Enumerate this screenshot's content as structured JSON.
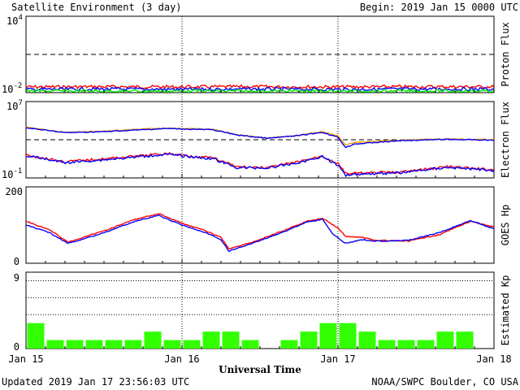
{
  "header": {
    "title": "Satellite Environment (3 day)",
    "begin": "Begin:  2019 Jan 15 0000 UTC"
  },
  "footer": {
    "updated": "Updated 2019 Jan 17 23:56:03 UTC",
    "credit": "NOAA/SWPC Boulder, CO USA",
    "xlabel": "Universal Time"
  },
  "x_ticks": [
    "Jan 15",
    "Jan 16",
    "Jan 17",
    "Jan 18"
  ],
  "colors": {
    "red": "#ff0000",
    "blue": "#0000ff",
    "green": "#00ee00",
    "orange": "#ff9900",
    "kp_bar": "#33ff00"
  },
  "chart_data": [
    {
      "type": "line",
      "scale": "log",
      "ylabel": "Proton Flux",
      "ylim": [
        0.01,
        10000
      ],
      "y_ticks": [
        {
          "base": "10",
          "exp": "4"
        },
        {
          "base": "10",
          "exp": "-2"
        }
      ],
      "threshold": 10,
      "x_range_days": [
        0,
        3
      ],
      "series": [
        {
          "color": "red",
          "points": [
            [
              0,
              0.028
            ],
            [
              0.5,
              0.029
            ],
            [
              1,
              0.028
            ],
            [
              1.5,
              0.029
            ],
            [
              2,
              0.028
            ],
            [
              2.5,
              0.029
            ],
            [
              3,
              0.029
            ]
          ]
        },
        {
          "color": "blue",
          "points": [
            [
              0,
              0.018
            ],
            [
              0.5,
              0.019
            ],
            [
              1,
              0.018
            ],
            [
              1.5,
              0.019
            ],
            [
              2,
              0.018
            ],
            [
              2.5,
              0.019
            ],
            [
              3,
              0.019
            ]
          ]
        },
        {
          "color": "green",
          "points": [
            [
              0,
              0.013
            ],
            [
              0.5,
              0.013
            ],
            [
              1,
              0.013
            ],
            [
              1.5,
              0.013
            ],
            [
              2,
              0.013
            ],
            [
              2.5,
              0.013
            ],
            [
              3,
              0.013
            ]
          ]
        }
      ]
    },
    {
      "type": "line",
      "scale": "log",
      "ylabel": "Electron Flux",
      "ylim": [
        0.1,
        10000000
      ],
      "y_ticks": [
        {
          "base": "10",
          "exp": "7"
        },
        {
          "base": "10",
          "exp": "-1"
        }
      ],
      "threshold": 1000,
      "x_range_days": [
        0,
        3
      ],
      "series": [
        {
          "color": "orange",
          "points": [
            [
              0,
              20000
            ],
            [
              0.25,
              6000
            ],
            [
              0.5,
              8000
            ],
            [
              0.9,
              17000
            ],
            [
              1.2,
              12000
            ],
            [
              1.35,
              3500
            ],
            [
              1.55,
              1500
            ],
            [
              1.75,
              3000
            ],
            [
              1.9,
              7000
            ],
            [
              2.0,
              2500
            ],
            [
              2.05,
              250
            ],
            [
              2.1,
              500
            ],
            [
              2.4,
              900
            ],
            [
              2.7,
              1200
            ],
            [
              3,
              1000
            ]
          ]
        },
        {
          "color": "blue",
          "points": [
            [
              0,
              18000
            ],
            [
              0.25,
              5500
            ],
            [
              0.5,
              7000
            ],
            [
              0.9,
              15000
            ],
            [
              1.2,
              11000
            ],
            [
              1.35,
              3200
            ],
            [
              1.55,
              1400
            ],
            [
              1.75,
              2800
            ],
            [
              1.9,
              6000
            ],
            [
              2.0,
              1800
            ],
            [
              2.05,
              150
            ],
            [
              2.1,
              350
            ],
            [
              2.4,
              800
            ],
            [
              2.7,
              1100
            ],
            [
              3,
              900
            ]
          ]
        },
        {
          "color": "red",
          "points": [
            [
              0,
              25
            ],
            [
              0.25,
              5
            ],
            [
              0.5,
              10
            ],
            [
              0.9,
              35
            ],
            [
              1.2,
              12
            ],
            [
              1.35,
              1.5
            ],
            [
              1.55,
              1.2
            ],
            [
              1.75,
              5
            ],
            [
              1.9,
              20
            ],
            [
              2.0,
              3
            ],
            [
              2.05,
              0.3
            ],
            [
              2.1,
              0.3
            ],
            [
              2.4,
              0.4
            ],
            [
              2.7,
              1.5
            ],
            [
              3,
              0.7
            ]
          ]
        },
        {
          "color": "blue",
          "points": [
            [
              0,
              22
            ],
            [
              0.25,
              4
            ],
            [
              0.5,
              8
            ],
            [
              0.9,
              30
            ],
            [
              1.2,
              10
            ],
            [
              1.35,
              1.2
            ],
            [
              1.55,
              1.1
            ],
            [
              1.75,
              4
            ],
            [
              1.9,
              18
            ],
            [
              2.0,
              2
            ],
            [
              2.05,
              0.2
            ],
            [
              2.1,
              0.25
            ],
            [
              2.4,
              0.35
            ],
            [
              2.7,
              1.3
            ],
            [
              3,
              0.6
            ]
          ]
        }
      ]
    },
    {
      "type": "line",
      "ylabel": "GOES Hp",
      "ylim": [
        0,
        200
      ],
      "y_ticks": [
        "200",
        "0"
      ],
      "x_range_days": [
        0,
        3
      ],
      "series": [
        {
          "color": "red",
          "points": [
            [
              0,
              110
            ],
            [
              0.15,
              88
            ],
            [
              0.27,
              55
            ],
            [
              0.5,
              85
            ],
            [
              0.7,
              115
            ],
            [
              0.85,
              130
            ],
            [
              1.0,
              105
            ],
            [
              1.15,
              85
            ],
            [
              1.25,
              68
            ],
            [
              1.3,
              38
            ],
            [
              1.45,
              55
            ],
            [
              1.65,
              85
            ],
            [
              1.8,
              110
            ],
            [
              1.9,
              118
            ],
            [
              2.0,
              92
            ],
            [
              2.05,
              70
            ],
            [
              2.15,
              68
            ],
            [
              2.25,
              60
            ],
            [
              2.45,
              58
            ],
            [
              2.65,
              75
            ],
            [
              2.85,
              110
            ],
            [
              3.0,
              95
            ]
          ]
        },
        {
          "color": "blue",
          "points": [
            [
              0,
              100
            ],
            [
              0.15,
              80
            ],
            [
              0.27,
              52
            ],
            [
              0.5,
              80
            ],
            [
              0.7,
              110
            ],
            [
              0.85,
              125
            ],
            [
              1.0,
              100
            ],
            [
              1.15,
              80
            ],
            [
              1.25,
              62
            ],
            [
              1.3,
              32
            ],
            [
              1.45,
              52
            ],
            [
              1.65,
              82
            ],
            [
              1.8,
              108
            ],
            [
              1.9,
              115
            ],
            [
              1.97,
              75
            ],
            [
              2.05,
              52
            ],
            [
              2.15,
              62
            ],
            [
              2.25,
              58
            ],
            [
              2.45,
              60
            ],
            [
              2.65,
              80
            ],
            [
              2.85,
              112
            ],
            [
              3.0,
              90
            ]
          ]
        }
      ]
    },
    {
      "type": "bar",
      "ylabel": "Estimated Kp",
      "ylim": [
        0,
        9
      ],
      "y_ticks": [
        "9",
        "0"
      ],
      "grid_lines": [
        4,
        6,
        8
      ],
      "bar_width_hours": 3,
      "values": [
        3,
        1,
        1,
        1,
        1,
        1,
        2,
        1,
        1,
        2,
        2,
        1,
        0,
        1,
        2,
        3,
        3,
        2,
        1,
        1,
        1,
        2,
        2,
        0
      ]
    }
  ]
}
